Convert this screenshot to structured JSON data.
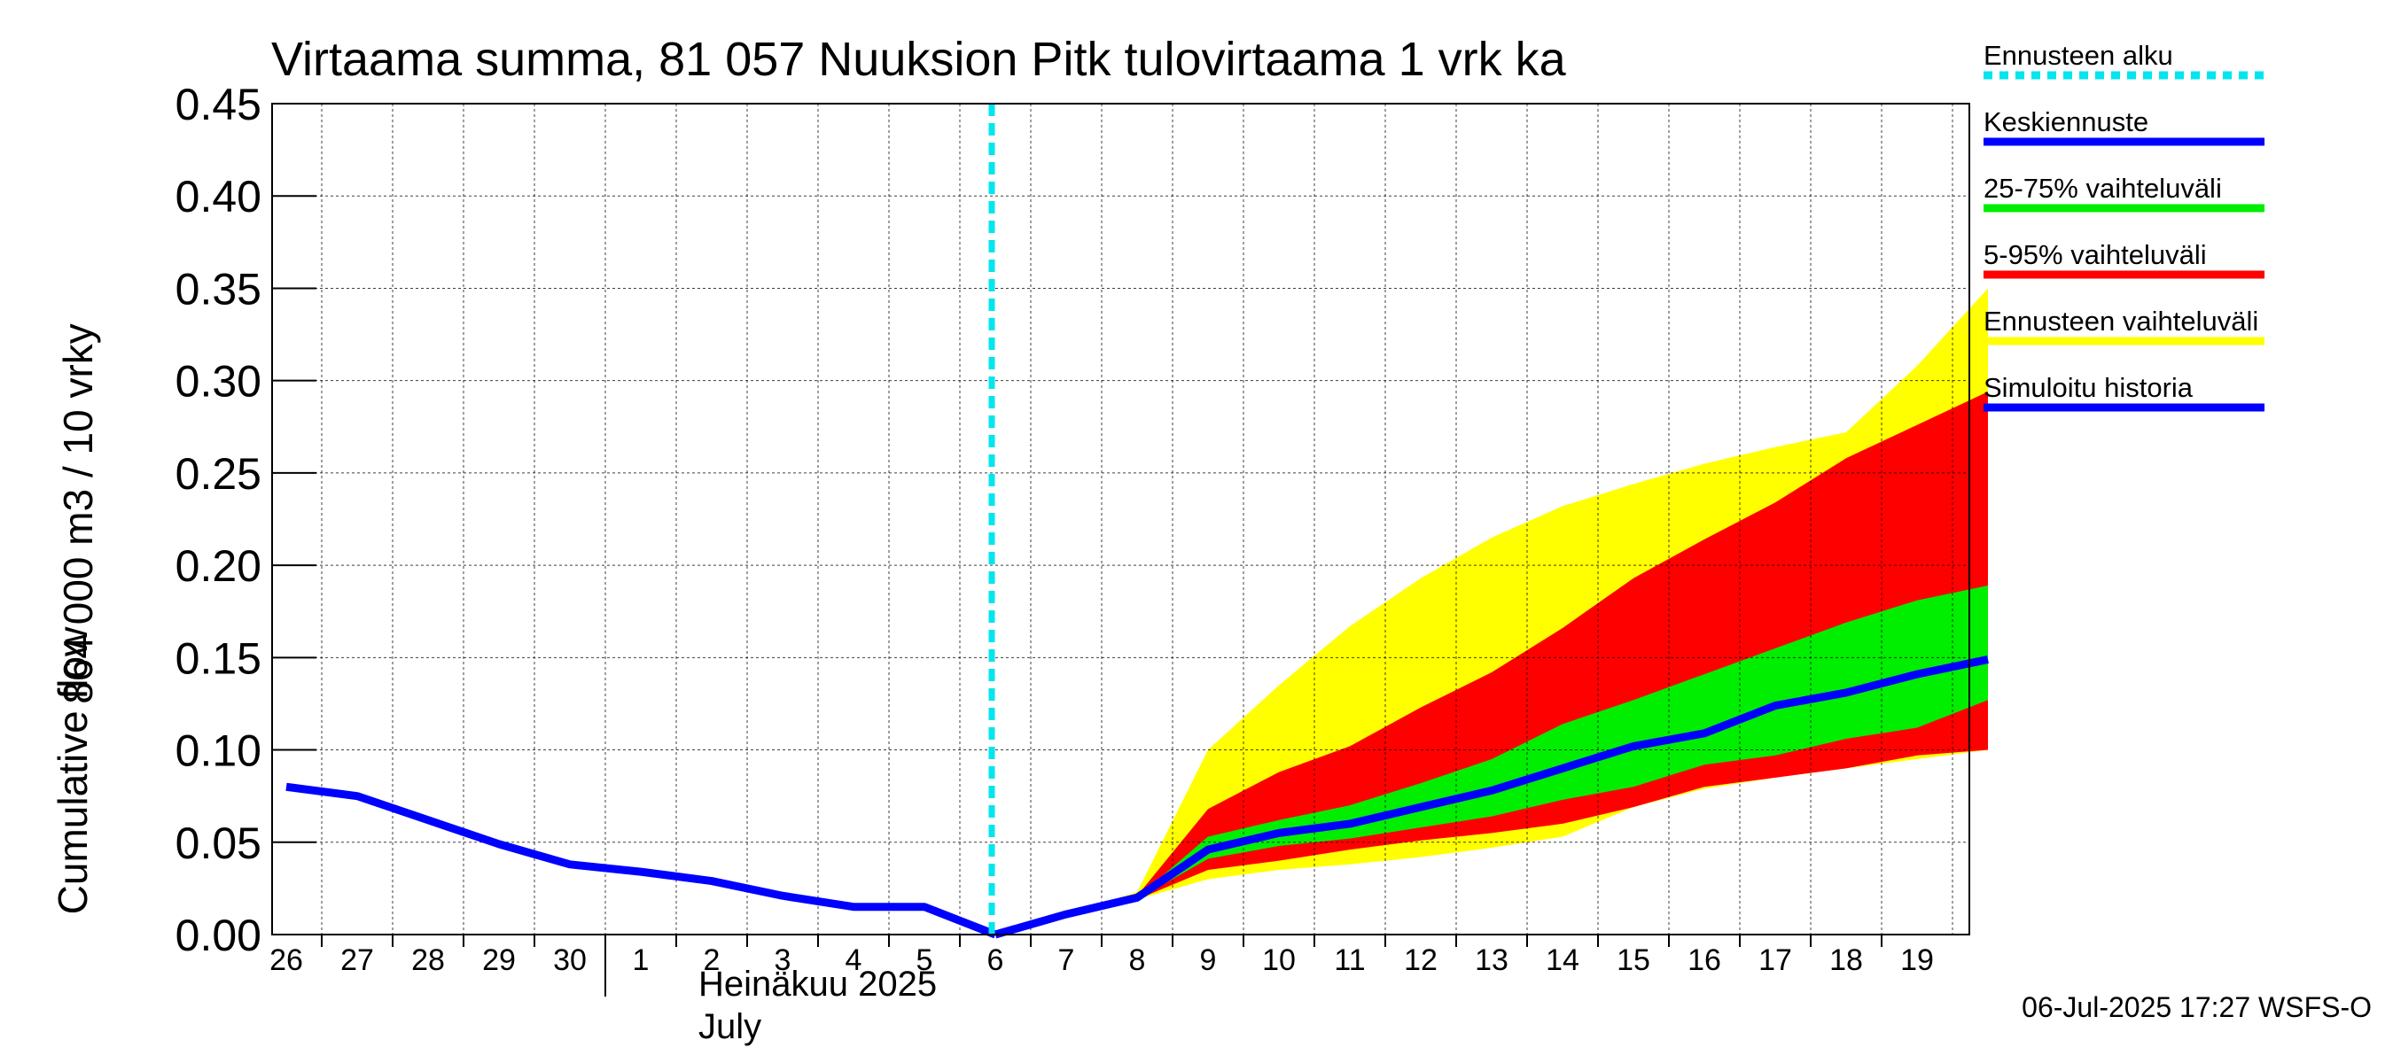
{
  "chart_data": {
    "type": "area",
    "title": "Virtaama summa, 81 057 Nuuksion Pitk tulovirtaama 1 vrk ka",
    "ylabel_line1": "864 000 m3 / 10 vrky",
    "ylabel_line2": "Cumulative flow",
    "month_label_fi": "Heinäkuu  2025",
    "month_label_en": "July",
    "timestamp": "06-Jul-2025 17:27 WSFS-O",
    "ylim": [
      0,
      0.45
    ],
    "yticks": [
      "0.00",
      "0.05",
      "0.10",
      "0.15",
      "0.20",
      "0.25",
      "0.30",
      "0.35",
      "0.40",
      "0.45"
    ],
    "xticks": [
      "26",
      "27",
      "28",
      "29",
      "30",
      "1",
      "2",
      "3",
      "4",
      "5",
      "6",
      "7",
      "8",
      "9",
      "10",
      "11",
      "12",
      "13",
      "14",
      "15",
      "16",
      "17",
      "18",
      "19"
    ],
    "forecast_start_index": 10,
    "colors": {
      "forecast_start": "#00e5ee",
      "mean_forecast": "#0000ff",
      "range_25_75": "#00ee00",
      "range_5_95": "#ff0000",
      "forecast_range": "#ffff00",
      "history": "#0000ff"
    },
    "history": {
      "name": "Simuloitu historia",
      "x": [
        0,
        1,
        2,
        3,
        4,
        5,
        6,
        7,
        8,
        9,
        10
      ],
      "values": [
        0.08,
        0.075,
        0.062,
        0.049,
        0.038,
        0.034,
        0.029,
        0.021,
        0.015,
        0.015,
        0.0
      ]
    },
    "bands": [
      {
        "name": "Ennusteen vaihteluväli",
        "x": [
          10,
          11,
          12,
          13,
          14,
          15,
          16,
          17,
          18,
          19,
          20,
          21,
          22,
          23,
          24
        ],
        "upper": [
          0.0,
          0.011,
          0.023,
          0.1,
          0.135,
          0.167,
          0.193,
          0.215,
          0.232,
          0.244,
          0.255,
          0.264,
          0.272,
          0.308,
          0.35
        ],
        "lower": [
          0.0,
          0.011,
          0.019,
          0.03,
          0.035,
          0.038,
          0.042,
          0.047,
          0.053,
          0.069,
          0.079,
          0.085,
          0.09,
          0.095,
          0.1
        ]
      },
      {
        "name": "5-95% vaihteluväli",
        "x": [
          10,
          11,
          12,
          13,
          14,
          15,
          16,
          17,
          18,
          19,
          20,
          21,
          22,
          23,
          24
        ],
        "upper": [
          0.0,
          0.011,
          0.021,
          0.068,
          0.088,
          0.102,
          0.123,
          0.142,
          0.166,
          0.193,
          0.214,
          0.234,
          0.258,
          0.276,
          0.294
        ],
        "lower": [
          0.0,
          0.011,
          0.019,
          0.035,
          0.04,
          0.046,
          0.051,
          0.055,
          0.06,
          0.069,
          0.08,
          0.085,
          0.09,
          0.097,
          0.1
        ]
      },
      {
        "name": "25-75% vaihteluväli",
        "x": [
          10,
          11,
          12,
          13,
          14,
          15,
          16,
          17,
          18,
          19,
          20,
          21,
          22,
          23,
          24
        ],
        "upper": [
          0.0,
          0.011,
          0.02,
          0.053,
          0.062,
          0.07,
          0.082,
          0.095,
          0.114,
          0.127,
          0.141,
          0.155,
          0.169,
          0.181,
          0.189
        ],
        "lower": [
          0.0,
          0.011,
          0.019,
          0.041,
          0.048,
          0.052,
          0.058,
          0.064,
          0.073,
          0.08,
          0.092,
          0.097,
          0.106,
          0.112,
          0.127
        ]
      }
    ],
    "mean_forecast": {
      "name": "Keskiennuste",
      "x": [
        10,
        11,
        12,
        13,
        14,
        15,
        16,
        17,
        18,
        19,
        20,
        21,
        22,
        23,
        24
      ],
      "values": [
        0.0,
        0.011,
        0.02,
        0.046,
        0.055,
        0.06,
        0.069,
        0.078,
        0.09,
        0.102,
        0.109,
        0.124,
        0.131,
        0.141,
        0.149
      ]
    },
    "legend": [
      {
        "label": "Ennusteen alku",
        "color": "#00e5ee",
        "style": "dashed"
      },
      {
        "label": "Keskiennuste",
        "color": "#0000ff",
        "style": "solid"
      },
      {
        "label": "25-75% vaihteluväli",
        "color": "#00ee00",
        "style": "solid"
      },
      {
        "label": "5-95% vaihteluväli",
        "color": "#ff0000",
        "style": "solid"
      },
      {
        "label": "Ennusteen vaihteluväli",
        "color": "#ffff00",
        "style": "solid"
      },
      {
        "label": "Simuloitu historia",
        "color": "#0000ff",
        "style": "solid"
      }
    ]
  }
}
